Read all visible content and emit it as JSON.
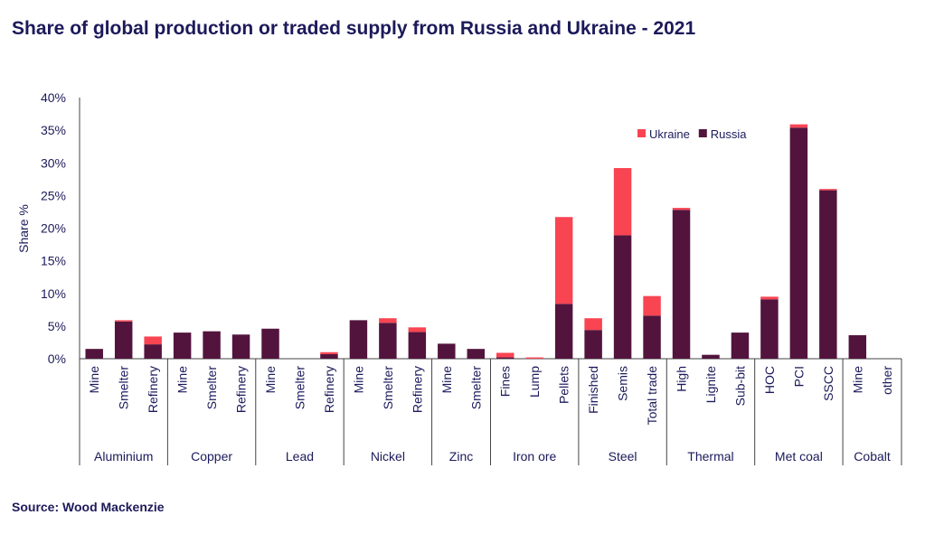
{
  "chart_data": {
    "type": "bar",
    "stacked": true,
    "title": "Share of global production or traded supply from Russia and Ukraine - 2021",
    "ylabel": "Share %",
    "xlabel": "",
    "ylim": [
      0,
      40
    ],
    "yticks": [
      "0%",
      "5%",
      "10%",
      "15%",
      "20%",
      "25%",
      "30%",
      "35%",
      "40%"
    ],
    "grid": false,
    "legend_position": "top-right",
    "groups": [
      {
        "name": "Aluminium",
        "categories": [
          "Mine",
          "Smelter",
          "Refinery"
        ]
      },
      {
        "name": "Copper",
        "categories": [
          "Mine",
          "Smelter",
          "Refinery"
        ]
      },
      {
        "name": "Lead",
        "categories": [
          "Mine",
          "Smelter",
          "Refinery"
        ]
      },
      {
        "name": "Nickel",
        "categories": [
          "Mine",
          "Smelter",
          "Refinery"
        ]
      },
      {
        "name": "Zinc",
        "categories": [
          "Mine",
          "Smelter"
        ]
      },
      {
        "name": "Iron ore",
        "categories": [
          "Fines",
          "Lump",
          "Pellets"
        ]
      },
      {
        "name": "Steel",
        "categories": [
          "Finished",
          "Semis",
          "Total trade"
        ]
      },
      {
        "name": "Thermal",
        "categories": [
          "High",
          "Lignite",
          "Sub-bit"
        ]
      },
      {
        "name": "Met coal",
        "categories": [
          "HOC",
          "PCI",
          "SSCC"
        ]
      },
      {
        "name": "Cobalt",
        "categories": [
          "Mine",
          "other"
        ]
      }
    ],
    "series": [
      {
        "name": "Russia",
        "color": "#52143d",
        "values": [
          1.5,
          5.7,
          2.2,
          4.0,
          4.2,
          3.7,
          4.6,
          0,
          0.7,
          5.9,
          5.5,
          4.1,
          2.3,
          1.5,
          0.2,
          0,
          8.4,
          4.4,
          18.9,
          6.6,
          22.8,
          0.6,
          4.0,
          9.1,
          35.4,
          25.8,
          3.6,
          0
        ]
      },
      {
        "name": "Ukraine",
        "color": "#f94452",
        "values": [
          0,
          0.2,
          1.2,
          0,
          0,
          0,
          0,
          0,
          0.3,
          0,
          0.7,
          0.7,
          0,
          0,
          0.7,
          0.2,
          13.3,
          1.8,
          10.3,
          3.0,
          0.3,
          0,
          0,
          0.4,
          0.5,
          0.2,
          0,
          0
        ]
      }
    ]
  },
  "source": "Source: Wood Mackenzie"
}
